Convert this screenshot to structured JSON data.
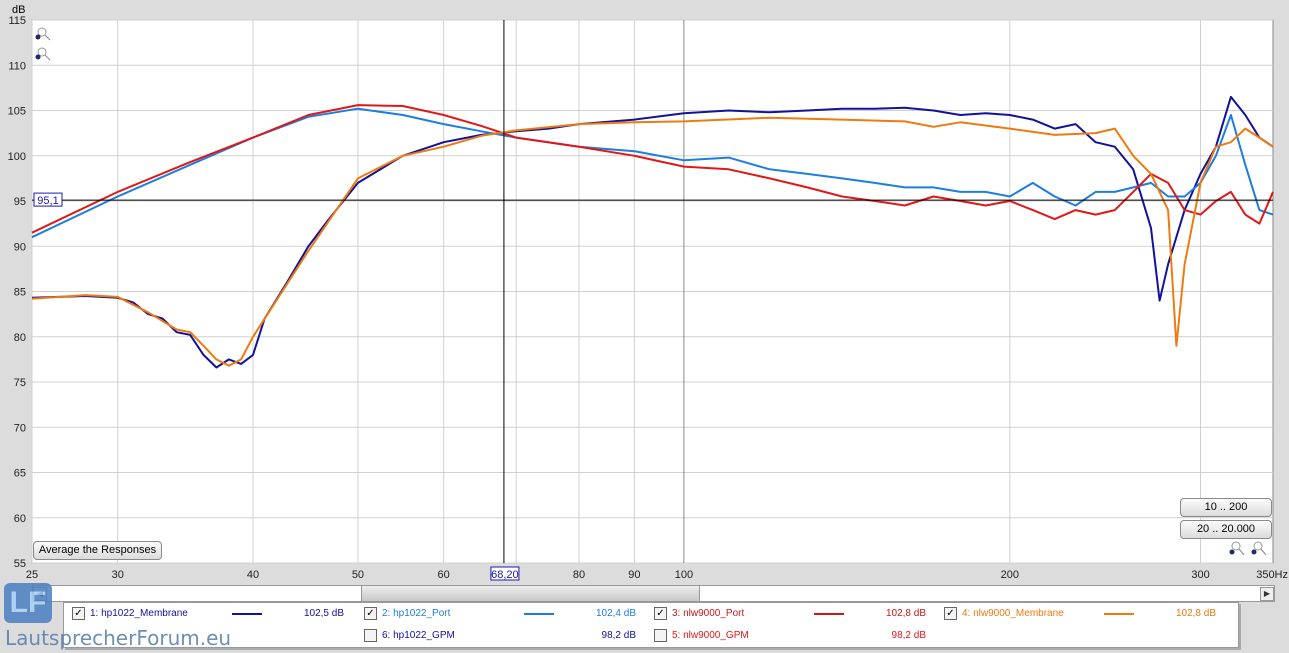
{
  "chart_data": {
    "type": "line",
    "ylabel": "dB",
    "xunit": "Hz",
    "xscale": "log",
    "xlim": [
      25,
      350
    ],
    "ylim": [
      55,
      115
    ],
    "xticks": [
      25,
      30,
      40,
      50,
      60,
      80,
      90,
      100,
      200,
      300
    ],
    "xtick_labels": [
      "25",
      "30",
      "40",
      "50",
      "60",
      "80",
      "90",
      "100",
      "200",
      "300"
    ],
    "xend_label": "350Hz",
    "yticks": [
      55,
      60,
      65,
      70,
      75,
      80,
      85,
      90,
      95,
      100,
      105,
      110,
      115
    ],
    "grid": true,
    "cursor": {
      "x": 68.2,
      "y": 95.1,
      "x_label": "68,20",
      "y_label": "95,1"
    },
    "series": [
      {
        "name": "1: hp1022_Membrane",
        "color": "#12129a",
        "x": [
          25,
          28,
          30,
          31,
          32,
          33,
          34,
          35,
          36,
          37,
          38,
          39,
          40,
          41,
          43,
          45,
          47,
          50,
          55,
          60,
          65,
          70,
          75,
          80,
          90,
          100,
          110,
          120,
          130,
          140,
          150,
          160,
          170,
          180,
          190,
          200,
          210,
          220,
          230,
          240,
          250,
          260,
          270,
          275,
          280,
          290,
          300,
          310,
          320,
          330,
          340,
          350
        ],
        "y": [
          84.3,
          84.5,
          84.3,
          83.8,
          82.5,
          82,
          80.5,
          80.2,
          78,
          76.6,
          77.5,
          77,
          78,
          82,
          86,
          90,
          93,
          97,
          100,
          101.5,
          102.3,
          102.7,
          103,
          103.5,
          104,
          104.7,
          105,
          104.8,
          105,
          105.2,
          105.2,
          105.3,
          105,
          104.5,
          104.7,
          104.5,
          104,
          103,
          103.5,
          101.5,
          101,
          98.5,
          92,
          84,
          88,
          94,
          98,
          101,
          106.5,
          104.5,
          102,
          101
        ]
      },
      {
        "name": "2: hp1022_Port",
        "color": "#1e7ee0",
        "x": [
          25,
          30,
          35,
          40,
          45,
          50,
          55,
          60,
          65,
          70,
          80,
          90,
          100,
          110,
          120,
          130,
          140,
          150,
          160,
          170,
          180,
          190,
          200,
          210,
          220,
          230,
          240,
          250,
          260,
          270,
          280,
          290,
          300,
          310,
          320,
          330,
          340,
          350
        ],
        "y": [
          91,
          95.5,
          99,
          102,
          104.3,
          105.2,
          104.5,
          103.5,
          102.7,
          102,
          101,
          100.5,
          99.5,
          99.8,
          98.5,
          98,
          97.5,
          97,
          96.5,
          96.5,
          96,
          96,
          95.5,
          97,
          95.5,
          94.5,
          96,
          96,
          96.5,
          97,
          95.5,
          95.5,
          97,
          100,
          104.5,
          99,
          94,
          93.5
        ]
      },
      {
        "name": "3: nlw9000_Port",
        "color": "#e01818",
        "x": [
          25,
          30,
          35,
          40,
          45,
          50,
          55,
          60,
          65,
          70,
          80,
          90,
          100,
          110,
          120,
          130,
          140,
          150,
          160,
          170,
          180,
          190,
          200,
          210,
          220,
          230,
          240,
          250,
          260,
          270,
          280,
          290,
          300,
          310,
          320,
          330,
          340,
          350
        ],
        "y": [
          91.5,
          96,
          99.3,
          102,
          104.5,
          105.6,
          105.5,
          104.5,
          103.3,
          102,
          101,
          100,
          98.8,
          98.5,
          97.5,
          96.5,
          95.5,
          95,
          94.5,
          95.5,
          95,
          94.5,
          95,
          94,
          93,
          94,
          93.5,
          94,
          96,
          98,
          97,
          94,
          93.5,
          95,
          96,
          93.5,
          92.5,
          96
        ]
      },
      {
        "name": "4: nlw9000_Membrane",
        "color": "#ee7a10",
        "x": [
          25,
          28,
          30,
          32,
          34,
          35,
          36,
          37,
          38,
          39,
          40,
          45,
          50,
          55,
          60,
          65,
          70,
          80,
          90,
          100,
          120,
          140,
          160,
          170,
          180,
          200,
          220,
          240,
          250,
          260,
          270,
          280,
          285,
          290,
          300,
          310,
          320,
          330,
          340,
          350
        ],
        "y": [
          84.2,
          84.6,
          84.4,
          82.7,
          80.8,
          80.5,
          79,
          77.5,
          76.8,
          77.5,
          80,
          89.5,
          97.5,
          100,
          101,
          102.2,
          102.8,
          103.5,
          103.7,
          103.8,
          104.2,
          104,
          103.8,
          103.2,
          103.7,
          103,
          102.3,
          102.5,
          103,
          100,
          98,
          94,
          79,
          88,
          97,
          101,
          101.5,
          103,
          102,
          101
        ]
      }
    ]
  },
  "buttons": {
    "average": "Average the Responses",
    "range1": "10 .. 200",
    "range2": "20 .. 20.000"
  },
  "legend": [
    {
      "label": "1: hp1022_Membrane",
      "value": "102,5 dB",
      "color": "#12129a",
      "checked": true
    },
    {
      "label": "2: hp1022_Port",
      "value": "102,4 dB",
      "color": "#1e7ee0",
      "checked": true
    },
    {
      "label": "3: nlw9000_Port",
      "value": "102,8 dB",
      "color": "#c81818",
      "checked": true
    },
    {
      "label": "4: nlw9000_Membrane",
      "value": "102,8 dB",
      "color": "#ee7a10",
      "checked": true
    },
    {
      "label": "5: nlw9000_GPM",
      "value": "98,2 dB",
      "color": "#e01818",
      "checked": false
    },
    {
      "label": "6: hp1022_GPM",
      "value": "98,2 dB",
      "color": "#12129a",
      "checked": false
    }
  ],
  "watermark": {
    "logo": "LF",
    "text": "LautsprecherForum.eu"
  }
}
